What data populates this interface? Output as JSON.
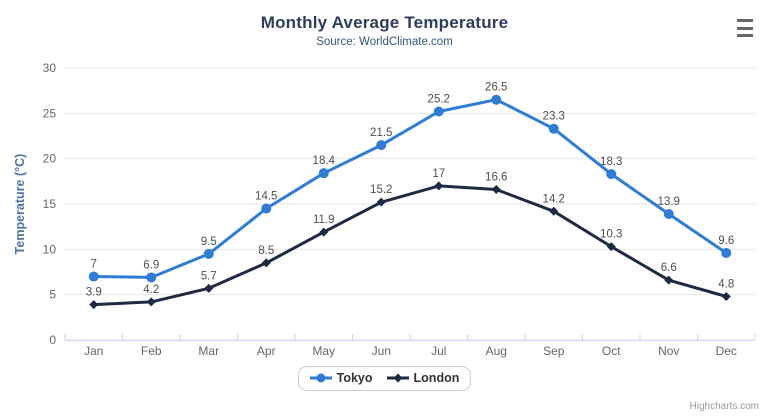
{
  "chart_data": {
    "type": "line",
    "title": "Monthly Average Temperature",
    "subtitle": "Source: WorldClimate.com",
    "xlabel": "",
    "ylabel": "Temperature (°C)",
    "categories": [
      "Jan",
      "Feb",
      "Mar",
      "Apr",
      "May",
      "Jun",
      "Jul",
      "Aug",
      "Sep",
      "Oct",
      "Nov",
      "Dec"
    ],
    "series": [
      {
        "name": "Tokyo",
        "marker": "circle",
        "color": "#2e7cd6",
        "values": [
          7,
          6.9,
          9.5,
          14.5,
          18.4,
          21.5,
          25.2,
          26.5,
          23.3,
          18.3,
          13.9,
          9.6
        ]
      },
      {
        "name": "London",
        "marker": "diamond",
        "color": "#1c2a42",
        "values": [
          3.9,
          4.2,
          5.7,
          8.5,
          11.9,
          15.2,
          17,
          16.6,
          14.2,
          10.3,
          6.6,
          4.8
        ]
      }
    ],
    "ylim": [
      0,
      30
    ],
    "ytick_step": 5,
    "grid": true,
    "data_labels": true,
    "legend_position": "bottom"
  },
  "colors": {
    "grid": "#e6e6e6",
    "axis_line": "#ccd6eb",
    "tick_label": "#666666",
    "data_label": "#4d4d4d",
    "title": "#2b3e5c",
    "subtitle": "#30567c",
    "y_title": "#4a74a8",
    "legend_border": "#cccccc",
    "legend_text": "#333333",
    "credits_text": "#999999",
    "menu_icon": "#666666"
  },
  "credits": {
    "label": "Highcharts.com"
  },
  "menu": {
    "name": "chart context menu"
  }
}
